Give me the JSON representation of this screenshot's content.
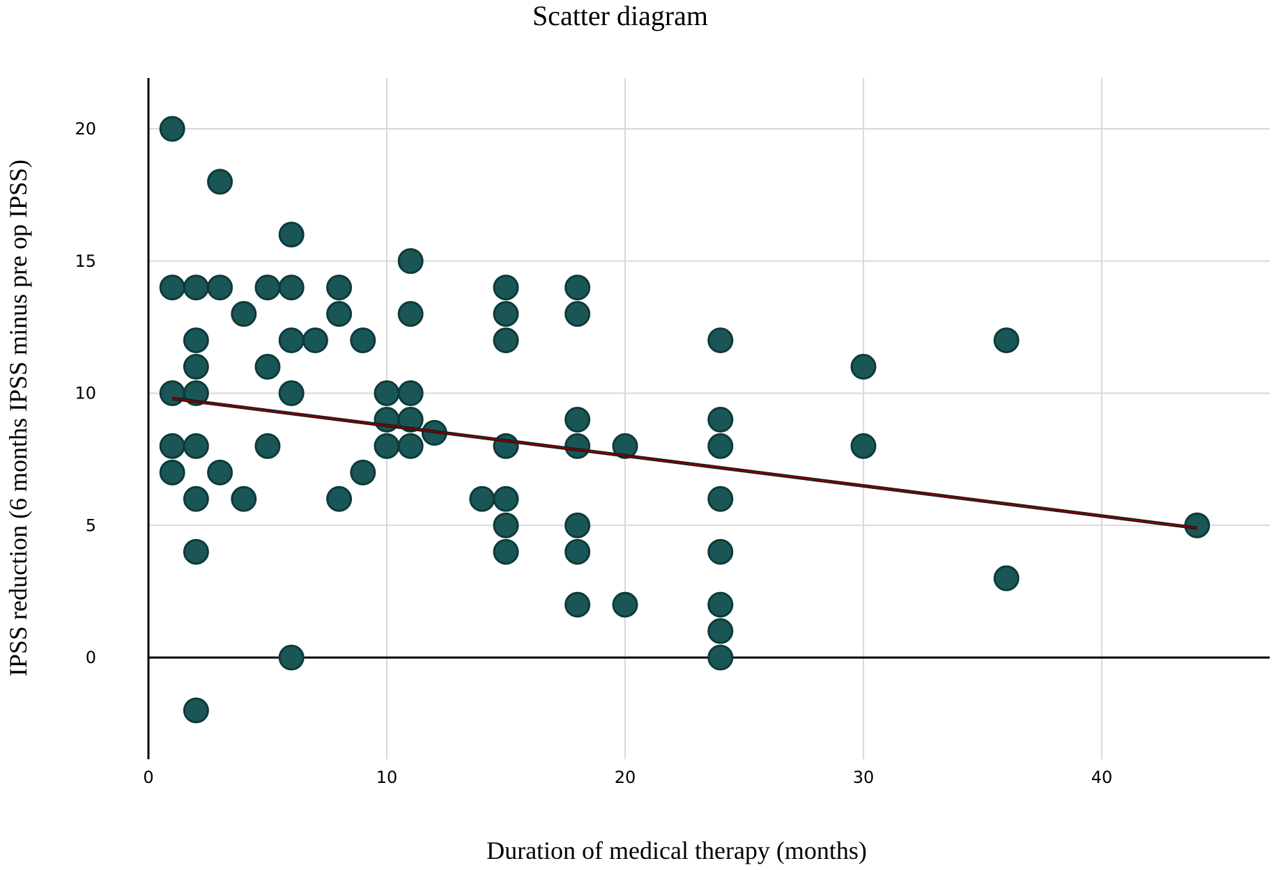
{
  "chart_data": {
    "type": "scatter",
    "title": "Scatter diagram",
    "xlabel": "Duration of medical therapy (months)",
    "ylabel": "IPSS reduction (6 months IPSS minus pre op IPSS)",
    "xlim": [
      0,
      47
    ],
    "ylim": [
      -3.5,
      22
    ],
    "xticks": [
      0,
      10,
      20,
      30,
      40
    ],
    "yticks": [
      0,
      5,
      10,
      15,
      20
    ],
    "grid": true,
    "point_color": "#1a5656",
    "point_edge_color": "#0d3a3a",
    "fit_line_color": "#8b0000",
    "fit_line": {
      "x": [
        1,
        44
      ],
      "y": [
        9.8,
        4.9
      ]
    },
    "points": [
      {
        "x": 1,
        "y": 20
      },
      {
        "x": 1,
        "y": 14
      },
      {
        "x": 1,
        "y": 10
      },
      {
        "x": 1,
        "y": 8
      },
      {
        "x": 1,
        "y": 7
      },
      {
        "x": 2,
        "y": 14
      },
      {
        "x": 2,
        "y": 12
      },
      {
        "x": 2,
        "y": 11
      },
      {
        "x": 2,
        "y": 10
      },
      {
        "x": 2,
        "y": 8
      },
      {
        "x": 2,
        "y": 6
      },
      {
        "x": 2,
        "y": 4
      },
      {
        "x": 2,
        "y": -2
      },
      {
        "x": 3,
        "y": 18
      },
      {
        "x": 3,
        "y": 14
      },
      {
        "x": 3,
        "y": 7
      },
      {
        "x": 4,
        "y": 13
      },
      {
        "x": 4,
        "y": 6
      },
      {
        "x": 5,
        "y": 14
      },
      {
        "x": 5,
        "y": 11
      },
      {
        "x": 5,
        "y": 8
      },
      {
        "x": 6,
        "y": 16
      },
      {
        "x": 6,
        "y": 14
      },
      {
        "x": 6,
        "y": 12
      },
      {
        "x": 6,
        "y": 10
      },
      {
        "x": 6,
        "y": 0
      },
      {
        "x": 7,
        "y": 12
      },
      {
        "x": 8,
        "y": 14
      },
      {
        "x": 8,
        "y": 13
      },
      {
        "x": 8,
        "y": 6
      },
      {
        "x": 9,
        "y": 12
      },
      {
        "x": 9,
        "y": 7
      },
      {
        "x": 10,
        "y": 10
      },
      {
        "x": 10,
        "y": 9
      },
      {
        "x": 10,
        "y": 8
      },
      {
        "x": 11,
        "y": 15
      },
      {
        "x": 11,
        "y": 13
      },
      {
        "x": 11,
        "y": 10
      },
      {
        "x": 11,
        "y": 9
      },
      {
        "x": 11,
        "y": 8
      },
      {
        "x": 12,
        "y": 8.5
      },
      {
        "x": 14,
        "y": 6
      },
      {
        "x": 15,
        "y": 14
      },
      {
        "x": 15,
        "y": 13
      },
      {
        "x": 15,
        "y": 12
      },
      {
        "x": 15,
        "y": 8
      },
      {
        "x": 15,
        "y": 6
      },
      {
        "x": 15,
        "y": 5
      },
      {
        "x": 15,
        "y": 4
      },
      {
        "x": 18,
        "y": 14
      },
      {
        "x": 18,
        "y": 13
      },
      {
        "x": 18,
        "y": 9
      },
      {
        "x": 18,
        "y": 8
      },
      {
        "x": 18,
        "y": 5
      },
      {
        "x": 18,
        "y": 4
      },
      {
        "x": 18,
        "y": 2
      },
      {
        "x": 20,
        "y": 8
      },
      {
        "x": 20,
        "y": 2
      },
      {
        "x": 24,
        "y": 12
      },
      {
        "x": 24,
        "y": 9
      },
      {
        "x": 24,
        "y": 8
      },
      {
        "x": 24,
        "y": 6
      },
      {
        "x": 24,
        "y": 4
      },
      {
        "x": 24,
        "y": 2
      },
      {
        "x": 24,
        "y": 1
      },
      {
        "x": 24,
        "y": 0
      },
      {
        "x": 30,
        "y": 11
      },
      {
        "x": 30,
        "y": 8
      },
      {
        "x": 36,
        "y": 12
      },
      {
        "x": 36,
        "y": 3
      },
      {
        "x": 44,
        "y": 5
      }
    ]
  }
}
